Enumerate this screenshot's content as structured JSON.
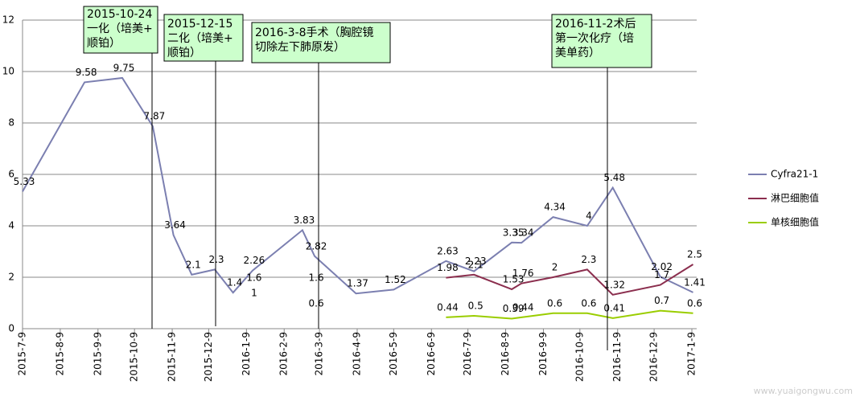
{
  "chart_data": {
    "type": "line",
    "x": [
      "2015-7-9",
      "2015-8-29",
      "2015-9-29",
      "2015-10-24",
      "2015-11-10",
      "2015-11-25",
      "2015-12-14",
      "2015-12-29",
      "2016-1-14",
      "2016-2-24",
      "2016-3-5",
      "2016-4-8",
      "2016-5-9",
      "2016-6-21",
      "2016-7-14",
      "2016-8-14",
      "2016-8-22",
      "2016-9-17",
      "2016-10-15",
      "2016-11-5",
      "2016-12-14",
      "2017-1-10"
    ],
    "series": [
      {
        "name": "Cyfra21-1",
        "color": "#7b7fb0",
        "values": [
          5.33,
          9.58,
          9.75,
          7.87,
          3.64,
          2.1,
          2.3,
          1.4,
          2.26,
          3.83,
          2.82,
          1.37,
          1.52,
          2.63,
          2.23,
          3.35,
          3.34,
          4.34,
          4,
          5.48,
          2.02,
          1.41
        ]
      },
      {
        "name": "淋巴细胞值",
        "color": "#8b2e4e",
        "values": [
          null,
          null,
          null,
          null,
          null,
          null,
          null,
          null,
          1.6,
          null,
          1.6,
          null,
          null,
          1.98,
          2.1,
          1.53,
          1.76,
          2,
          2.3,
          1.32,
          1.7,
          2.5
        ]
      },
      {
        "name": "单核细胞值",
        "color": "#9acd00",
        "values": [
          null,
          null,
          null,
          null,
          null,
          null,
          null,
          null,
          1,
          null,
          0.6,
          null,
          null,
          0.44,
          0.5,
          0.39,
          0.44,
          0.6,
          0.6,
          0.41,
          0.7,
          0.6
        ]
      }
    ],
    "xlim": [
      "2015-7-9",
      "2017-1-9"
    ],
    "xticks": [
      "2015-7-9",
      "2015-8-9",
      "2015-9-9",
      "2015-10-9",
      "2015-11-9",
      "2015-12-9",
      "2016-1-9",
      "2016-2-9",
      "2016-3-9",
      "2016-4-9",
      "2016-5-9",
      "2016-6-9",
      "2016-7-9",
      "2016-8-9",
      "2016-9-9",
      "2016-10-9",
      "2016-11-9",
      "2016-12-9",
      "2017-1-9"
    ],
    "ylim": [
      0,
      12
    ],
    "yticks": [
      0,
      2,
      4,
      6,
      8,
      10,
      12
    ],
    "grid": true,
    "annotations": [
      [
        "2015-10-24",
        "一化（培美+",
        "顺铂）"
      ],
      [
        "2015-12-15",
        "二化（培美+",
        "顺铂）"
      ],
      [
        "2016-3-8手术（胸腔镜",
        "切除左下肺原发）"
      ],
      [
        "2016-11-2术后",
        "第一次化疗（培",
        "美单药）"
      ]
    ],
    "watermark": "www.yuaigongwu.com"
  }
}
